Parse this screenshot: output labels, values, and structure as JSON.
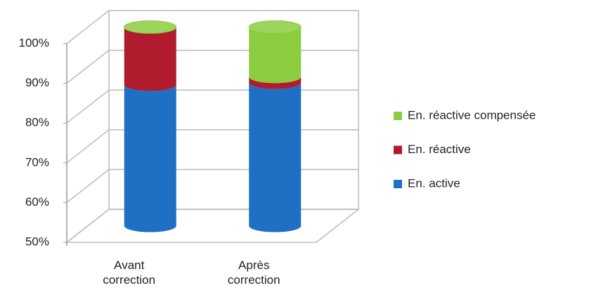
{
  "chart_data": {
    "type": "bar3d_stacked",
    "categories": [
      "Avant correction",
      "Après correction"
    ],
    "series": [
      {
        "name": "En. active",
        "color": "#1f6fc5",
        "values": [
          85.5,
          86
        ]
      },
      {
        "name": "En. réactive",
        "color": "#b01c2e",
        "values": [
          14.5,
          1.5
        ]
      },
      {
        "name": "En. réactive compensée",
        "color": "#8ccc3f",
        "values": [
          0,
          12.5
        ]
      }
    ],
    "ylim": [
      50,
      100
    ],
    "yticks": [
      {
        "value": 50,
        "label": "50%"
      },
      {
        "value": 60,
        "label": "60%"
      },
      {
        "value": 70,
        "label": "70%"
      },
      {
        "value": 80,
        "label": "80%"
      },
      {
        "value": 90,
        "label": "90%"
      },
      {
        "value": 100,
        "label": "100%"
      }
    ],
    "grid": true,
    "legend": "right"
  }
}
